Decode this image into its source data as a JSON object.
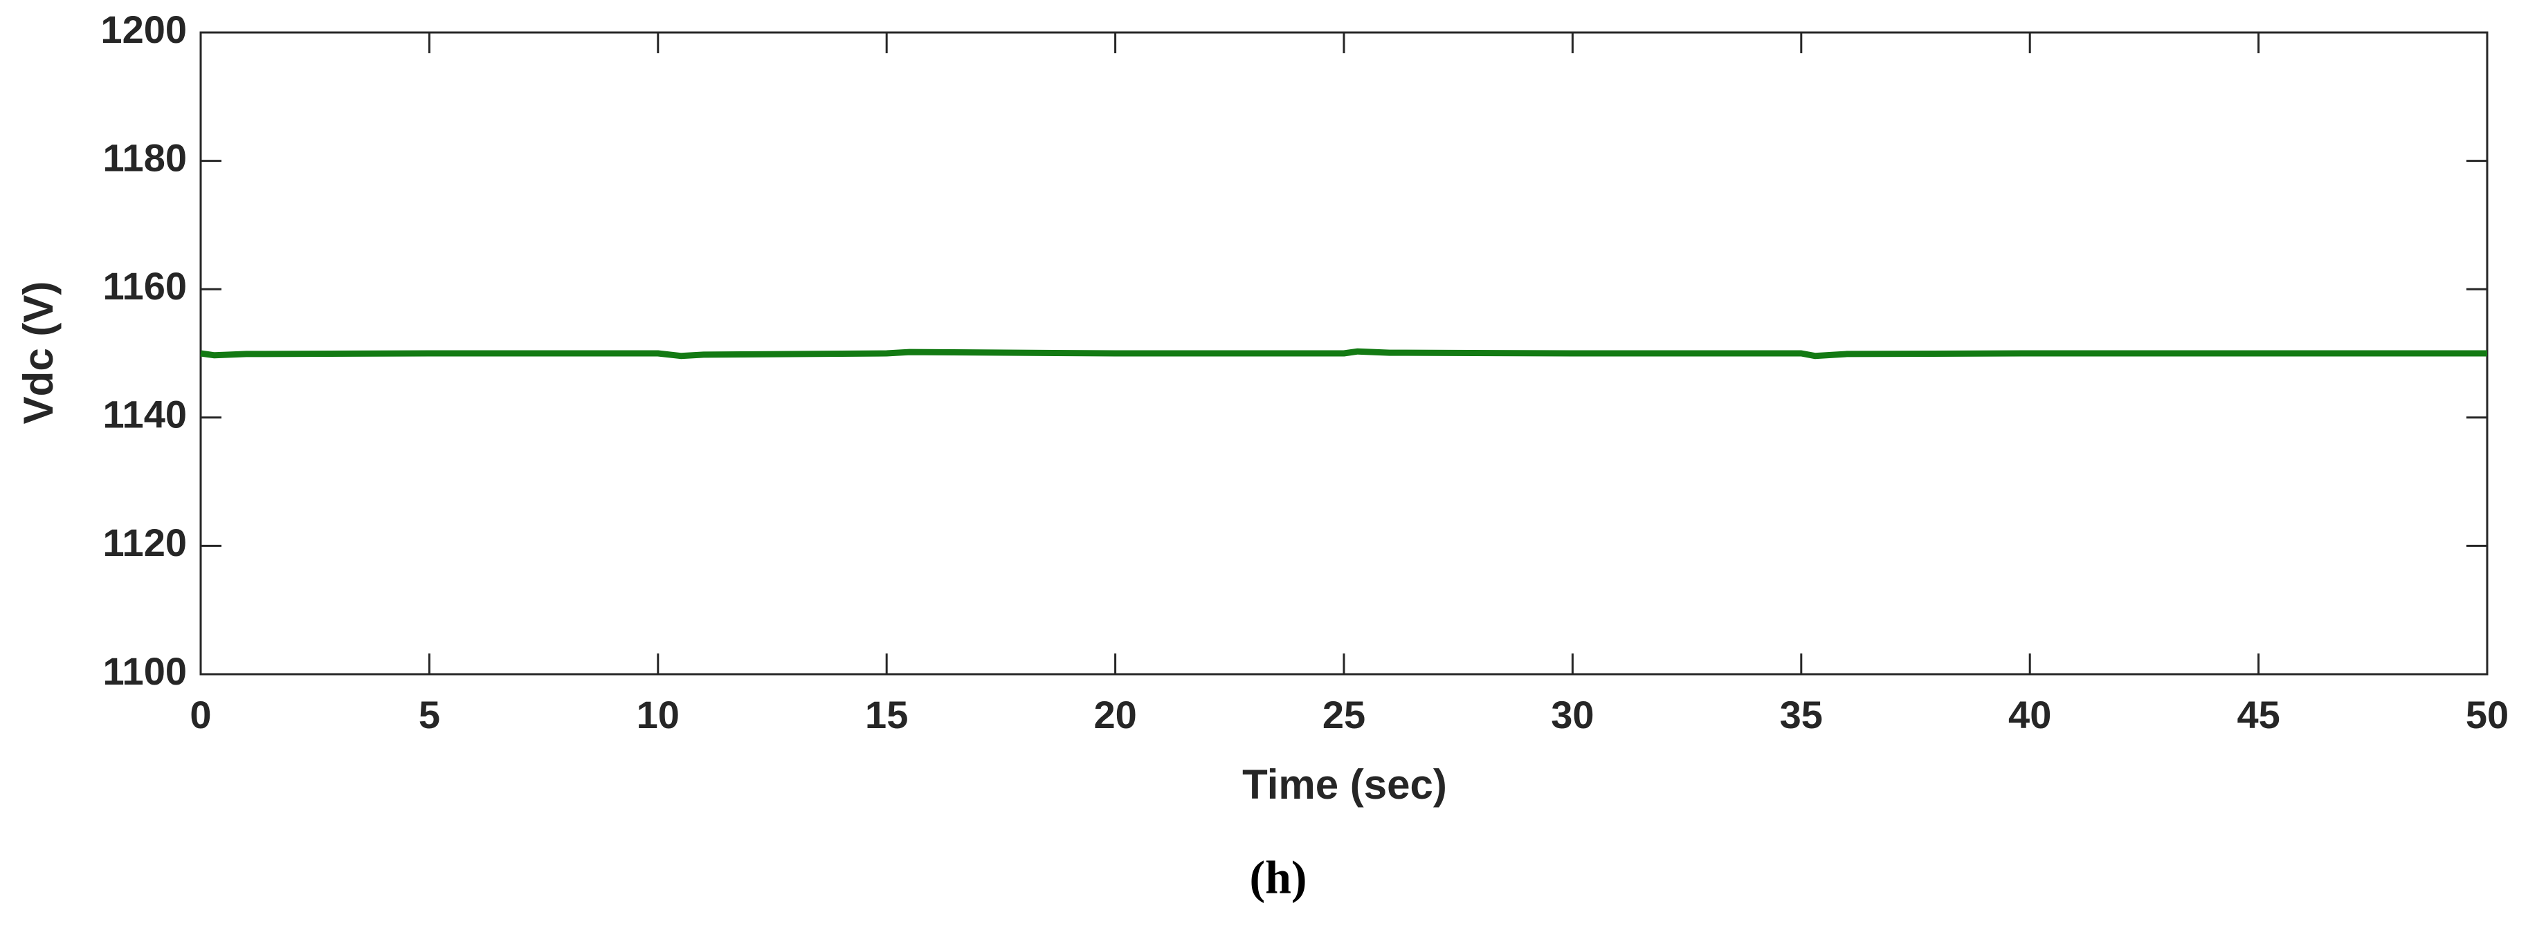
{
  "chart_data": {
    "type": "line",
    "xlabel": "Time (sec)",
    "ylabel": "Vdc (V)",
    "caption": "(h)",
    "x": [
      0,
      0.3,
      1,
      5,
      10,
      10.5,
      11,
      15,
      15.5,
      20,
      25,
      25.3,
      26,
      30,
      35,
      35.3,
      36,
      40,
      45,
      50
    ],
    "series": [
      {
        "color": "#137a13",
        "values": [
          1150,
          1149.7,
          1149.9,
          1150,
          1150,
          1149.6,
          1149.8,
          1150,
          1150.2,
          1150,
          1150,
          1150.3,
          1150.1,
          1150,
          1150,
          1149.6,
          1149.9,
          1150,
          1150,
          1150
        ]
      }
    ],
    "xlim": [
      0,
      50
    ],
    "xticks": [
      0,
      5,
      10,
      15,
      20,
      25,
      30,
      35,
      40,
      45,
      50
    ],
    "ylim": [
      1100,
      1200
    ],
    "yticks": [
      1100,
      1120,
      1140,
      1160,
      1180,
      1200
    ]
  }
}
